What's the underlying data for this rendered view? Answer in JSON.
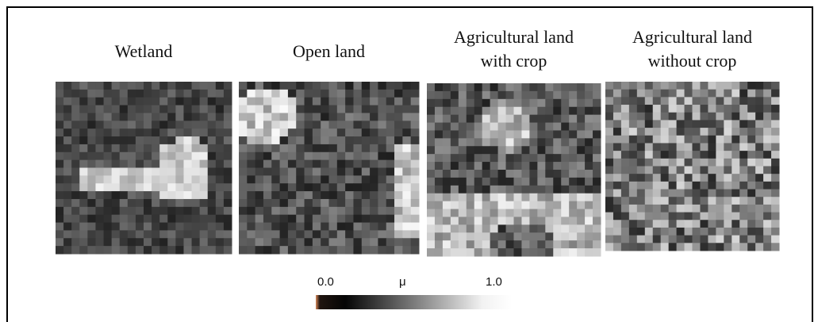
{
  "panels": [
    {
      "label": [
        "Wetland"
      ]
    },
    {
      "label": [
        "Open land"
      ]
    },
    {
      "label": [
        "Agricultural land",
        "with crop"
      ]
    },
    {
      "label": [
        "Agricultural land",
        "without crop"
      ]
    }
  ],
  "colorbar": {
    "min_label": "0.0",
    "symbol": "μ",
    "max_label": "1.0"
  }
}
